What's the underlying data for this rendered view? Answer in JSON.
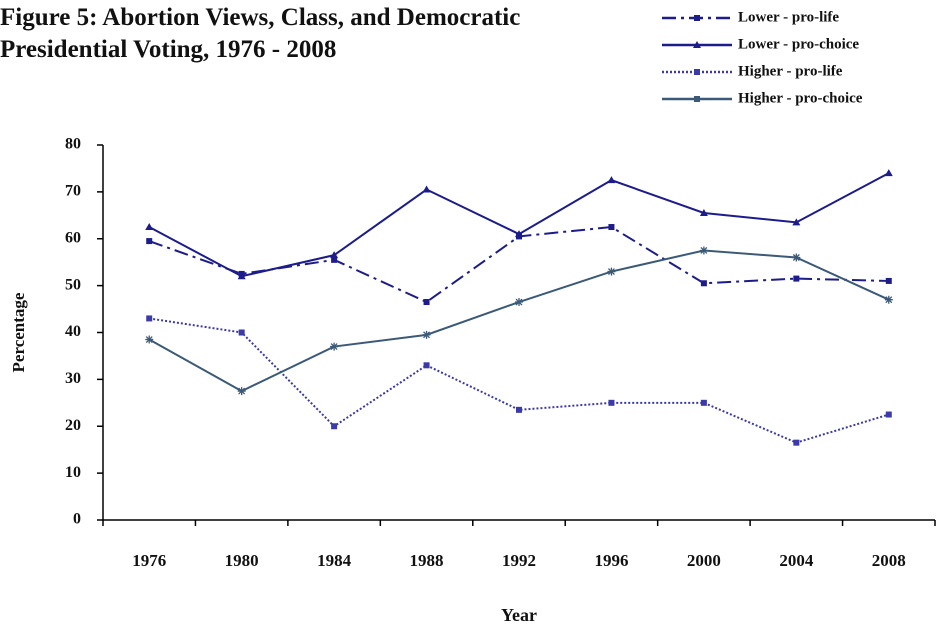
{
  "chart_data": {
    "type": "line",
    "title": "Figure 5: Abortion Views, Class, and Democratic Presidential Voting, 1976 - 2008",
    "x_label": "Year",
    "y_label": "Percentage",
    "categories": [
      "1976",
      "1980",
      "1984",
      "1988",
      "1992",
      "1996",
      "2000",
      "2004",
      "2008"
    ],
    "series": [
      {
        "name": "Lower - pro-life",
        "color": "#1c1c8a",
        "dash": "dashdot",
        "marker": "square",
        "values": [
          59.5,
          52.5,
          55.5,
          46.5,
          60.5,
          62.5,
          50.5,
          51.5,
          51
        ]
      },
      {
        "name": "Lower - pro-choice",
        "color": "#1c1c8a",
        "dash": "solid",
        "marker": "triangle",
        "values": [
          62.5,
          52,
          56.5,
          70.5,
          61,
          72.5,
          65.5,
          63.5,
          74
        ]
      },
      {
        "name": "Higher - pro-life",
        "color": "#3a3aa8",
        "dash": "dotted",
        "marker": "square",
        "values": [
          43,
          40,
          20,
          33,
          23.5,
          25,
          25,
          16.5,
          22.5
        ]
      },
      {
        "name": "Higher - pro-choice",
        "color": "#3b5a78",
        "dash": "solid",
        "marker": "asterisk",
        "values": [
          38.5,
          27.5,
          37,
          39.5,
          46.5,
          53,
          57.5,
          56,
          47
        ]
      }
    ],
    "ylim": [
      0,
      80
    ],
    "yticks": [
      0,
      10,
      20,
      30,
      40,
      50,
      60,
      70,
      80
    ],
    "legend": "top-right"
  }
}
